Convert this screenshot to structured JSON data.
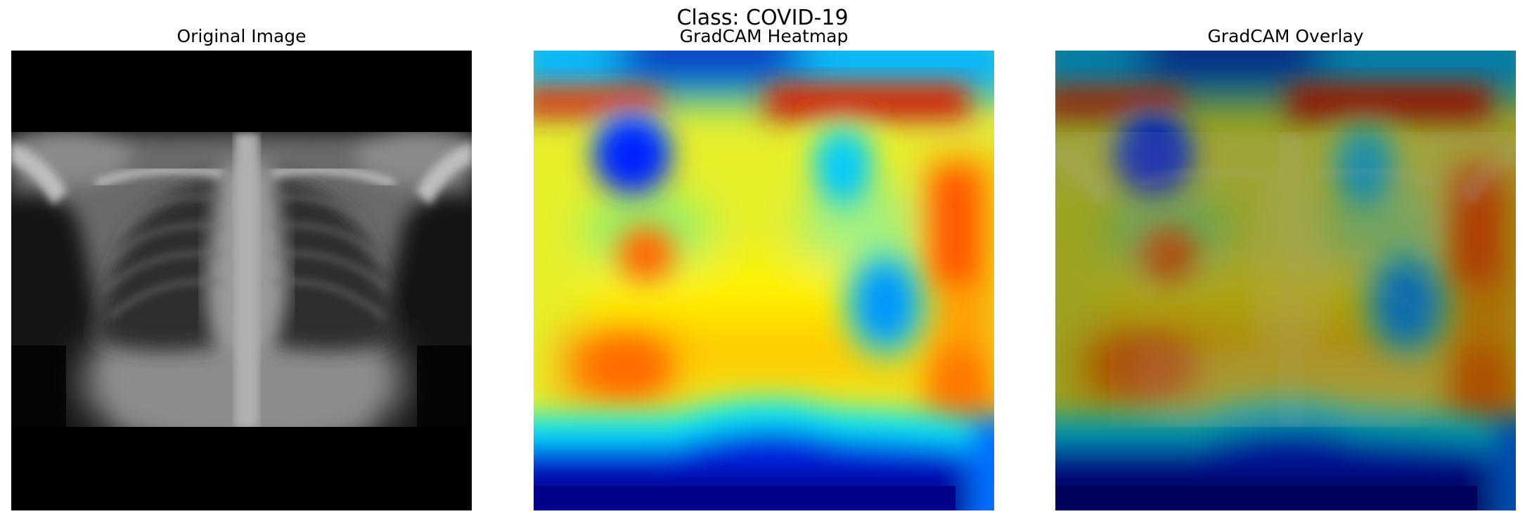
{
  "figure": {
    "title": "Class: COVID-19",
    "panels": [
      {
        "title": "Original Image"
      },
      {
        "title": "GradCAM Heatmap"
      },
      {
        "title": "GradCAM Overlay"
      }
    ]
  },
  "colors": {
    "background": "#ffffff",
    "colormap": "jet",
    "xray_background": "#000000"
  }
}
